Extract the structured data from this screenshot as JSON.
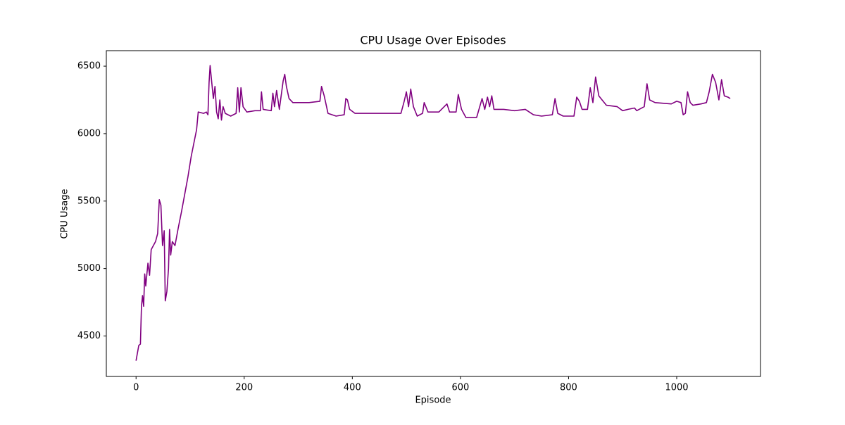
{
  "chart_data": {
    "type": "line",
    "title": "CPU Usage Over Episodes",
    "x_label": "Episode",
    "y_label": "CPU Usage",
    "x": [
      0,
      5,
      8,
      10,
      12,
      14,
      16,
      18,
      20,
      22,
      25,
      28,
      32,
      36,
      40,
      43,
      46,
      49,
      52,
      54,
      57,
      60,
      62,
      64,
      67,
      72,
      78,
      84,
      90,
      96,
      102,
      108,
      112,
      115,
      125,
      130,
      133,
      135,
      137,
      140,
      143,
      146,
      149,
      152,
      155,
      158,
      161,
      165,
      175,
      185,
      188,
      191,
      194,
      198,
      205,
      220,
      230,
      232,
      235,
      250,
      253,
      256,
      260,
      265,
      272,
      275,
      278,
      283,
      290,
      320,
      340,
      343,
      348,
      355,
      370,
      385,
      388,
      391,
      395,
      405,
      430,
      460,
      490,
      496,
      500,
      504,
      508,
      513,
      520,
      530,
      533,
      540,
      560,
      575,
      580,
      592,
      596,
      602,
      610,
      630,
      640,
      645,
      650,
      654,
      658,
      662,
      680,
      700,
      720,
      735,
      750,
      770,
      775,
      780,
      790,
      810,
      815,
      820,
      825,
      835,
      840,
      845,
      850,
      856,
      862,
      870,
      890,
      900,
      910,
      922,
      926,
      940,
      945,
      950,
      960,
      990,
      1000,
      1008,
      1012,
      1016,
      1020,
      1025,
      1030,
      1045,
      1055,
      1060,
      1066,
      1072,
      1078,
      1083,
      1088,
      1095,
      1099
    ],
    "series": [
      {
        "name": "CPU Usage",
        "color": "#800080",
        "values": [
          4317,
          4430,
          4440,
          4720,
          4800,
          4720,
          4960,
          4870,
          4960,
          5040,
          4950,
          5140,
          5170,
          5200,
          5260,
          5510,
          5470,
          5170,
          5280,
          4760,
          4830,
          5000,
          5290,
          5100,
          5200,
          5170,
          5300,
          5420,
          5550,
          5680,
          5830,
          5950,
          6030,
          6160,
          6150,
          6160,
          6140,
          6380,
          6505,
          6380,
          6260,
          6350,
          6160,
          6110,
          6250,
          6100,
          6200,
          6150,
          6130,
          6150,
          6340,
          6160,
          6340,
          6200,
          6160,
          6170,
          6170,
          6310,
          6180,
          6170,
          6300,
          6200,
          6320,
          6180,
          6390,
          6440,
          6350,
          6260,
          6230,
          6230,
          6240,
          6350,
          6280,
          6150,
          6130,
          6140,
          6260,
          6250,
          6180,
          6150,
          6150,
          6150,
          6150,
          6240,
          6310,
          6200,
          6330,
          6200,
          6130,
          6150,
          6230,
          6160,
          6160,
          6220,
          6160,
          6160,
          6290,
          6180,
          6120,
          6120,
          6260,
          6180,
          6270,
          6200,
          6280,
          6180,
          6180,
          6170,
          6180,
          6140,
          6130,
          6140,
          6260,
          6150,
          6130,
          6130,
          6270,
          6240,
          6180,
          6180,
          6340,
          6230,
          6420,
          6280,
          6250,
          6210,
          6200,
          6170,
          6180,
          6190,
          6170,
          6200,
          6370,
          6250,
          6230,
          6220,
          6240,
          6230,
          6140,
          6150,
          6310,
          6230,
          6210,
          6220,
          6230,
          6310,
          6440,
          6380,
          6250,
          6400,
          6280,
          6270,
          6260
        ]
      }
    ],
    "xlim": [
      -55,
      1155
    ],
    "ylim": [
      4200,
      6615
    ],
    "xticks": [
      0,
      200,
      400,
      600,
      800,
      1000
    ],
    "yticks": [
      4500,
      5000,
      5500,
      6000,
      6500
    ]
  }
}
